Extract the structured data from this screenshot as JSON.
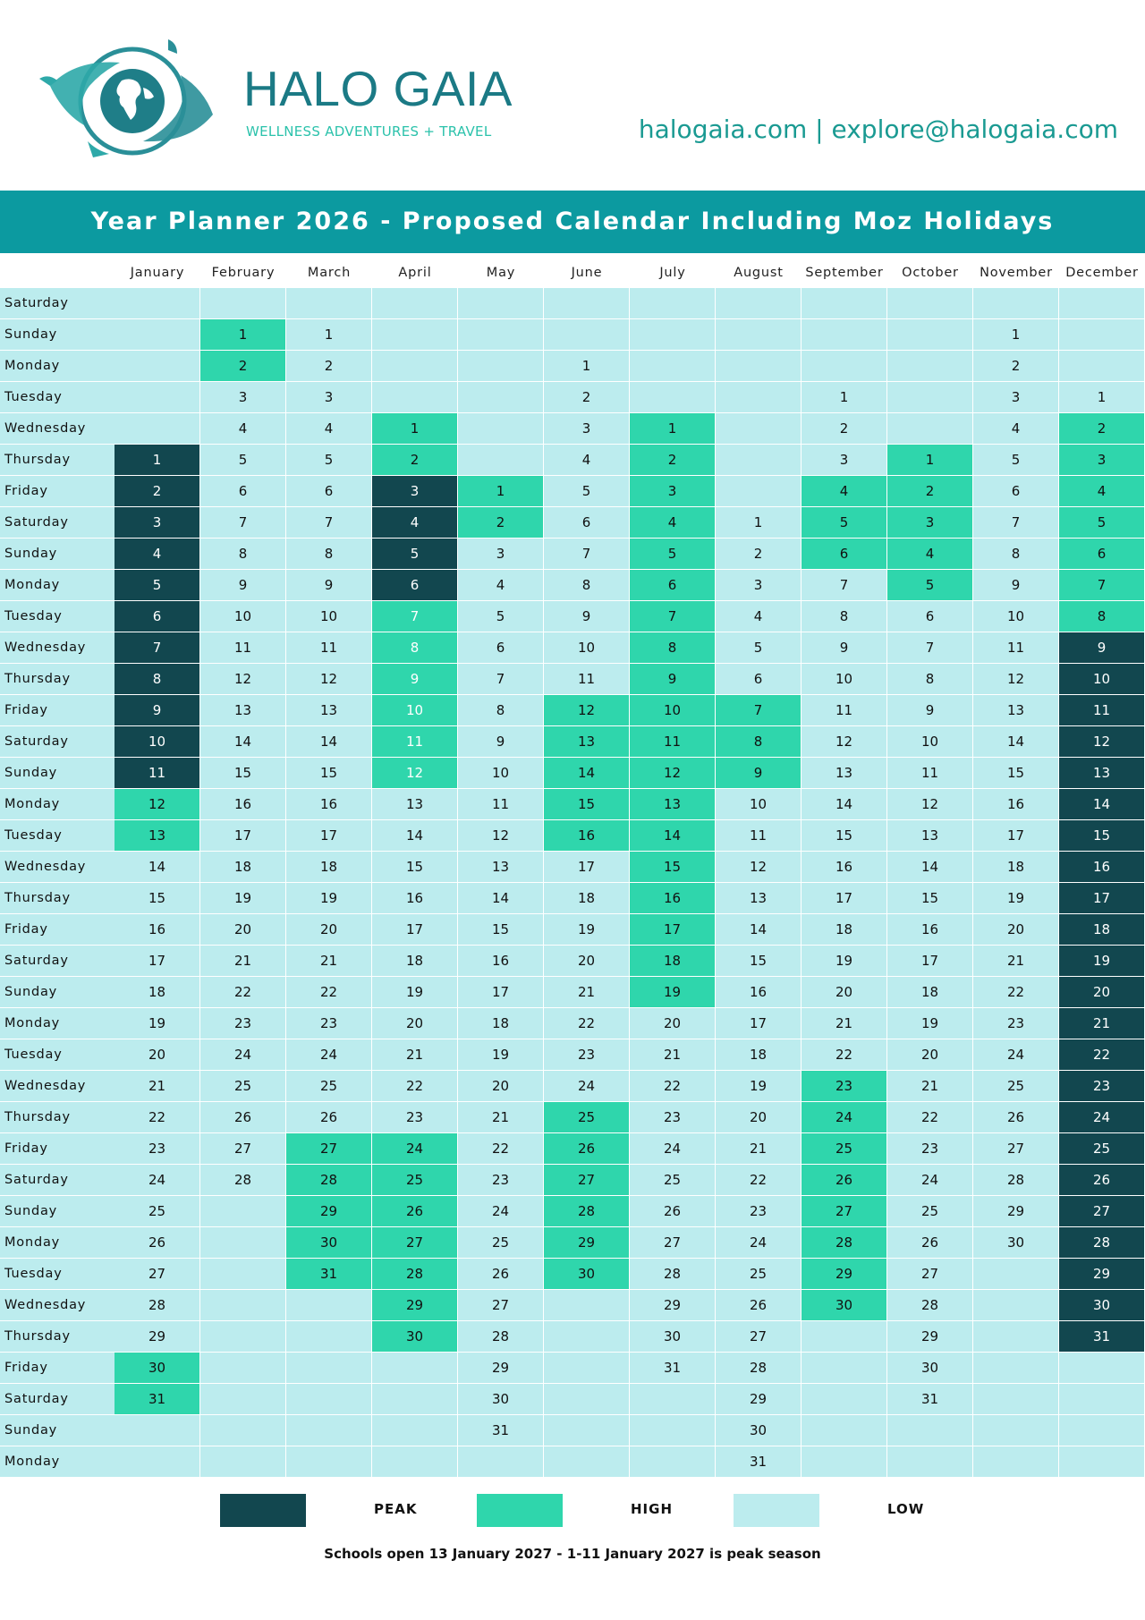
{
  "header": {
    "brand": "HALO GAIA",
    "tagline": "WELLNESS ADVENTURES + TRAVEL",
    "contact": "halogaia.com | explore@halogaia.com"
  },
  "title": "Year Planner 2026 - Proposed Calendar Including Moz Holidays",
  "colors": {
    "peak": "#12474f",
    "high": "#2fd6ac",
    "low": "#bcecee",
    "banner": "#0c9aa0",
    "brand": "#1b7a85"
  },
  "icons": {
    "logo": "dolphins-globe-logo"
  },
  "months": [
    "January",
    "February",
    "March",
    "April",
    "May",
    "June",
    "July",
    "August",
    "September",
    "October",
    "November",
    "December"
  ],
  "weekdays": [
    "Saturday",
    "Sunday",
    "Monday",
    "Tuesday",
    "Wednesday",
    "Thursday",
    "Friday",
    "Saturday",
    "Sunday",
    "Monday",
    "Tuesday",
    "Wednesday",
    "Thursday",
    "Friday",
    "Saturday",
    "Sunday",
    "Monday",
    "Tuesday",
    "Wednesday",
    "Thursday",
    "Friday",
    "Saturday",
    "Sunday",
    "Monday",
    "Tuesday",
    "Wednesday",
    "Thursday",
    "Friday",
    "Saturday",
    "Sunday",
    "Monday",
    "Tuesday",
    "Wednesday",
    "Thursday",
    "Friday",
    "Saturday",
    "Sunday",
    "Monday"
  ],
  "month_start_offsets": [
    5,
    1,
    1,
    4,
    6,
    2,
    4,
    7,
    3,
    5,
    1,
    3
  ],
  "month_lengths": [
    31,
    28,
    31,
    30,
    31,
    30,
    31,
    31,
    30,
    31,
    30,
    31
  ],
  "seasons": {
    "January": {
      "peak": [
        [
          1,
          11
        ]
      ],
      "high": [
        [
          12,
          13
        ],
        [
          30,
          31
        ]
      ]
    },
    "February": {
      "high": [
        [
          1,
          2
        ]
      ]
    },
    "March": {
      "high": [
        [
          27,
          31
        ]
      ]
    },
    "April": {
      "peak": [
        [
          3,
          6
        ]
      ],
      "high": [
        [
          1,
          2
        ],
        [
          24,
          30
        ]
      ],
      "high_light_text": [
        [
          7,
          12
        ]
      ]
    },
    "May": {
      "high": [
        [
          1,
          2
        ]
      ]
    },
    "June": {
      "high": [
        [
          12,
          16
        ],
        [
          25,
          30
        ]
      ]
    },
    "July": {
      "high": [
        [
          1,
          19
        ]
      ]
    },
    "August": {
      "high": [
        [
          7,
          9
        ]
      ]
    },
    "September": {
      "high": [
        [
          4,
          6
        ],
        [
          23,
          30
        ]
      ]
    },
    "October": {
      "high": [
        [
          1,
          5
        ]
      ]
    },
    "November": {},
    "December": {
      "peak": [
        [
          9,
          31
        ]
      ],
      "high": [
        [
          2,
          8
        ]
      ]
    }
  },
  "legend": [
    {
      "key": "peak",
      "label": "PEAK"
    },
    {
      "key": "high",
      "label": "HIGH"
    },
    {
      "key": "low",
      "label": "LOW"
    }
  ],
  "footer_note": "Schools open 13 January 2027 - 1-11 January 2027 is peak season"
}
